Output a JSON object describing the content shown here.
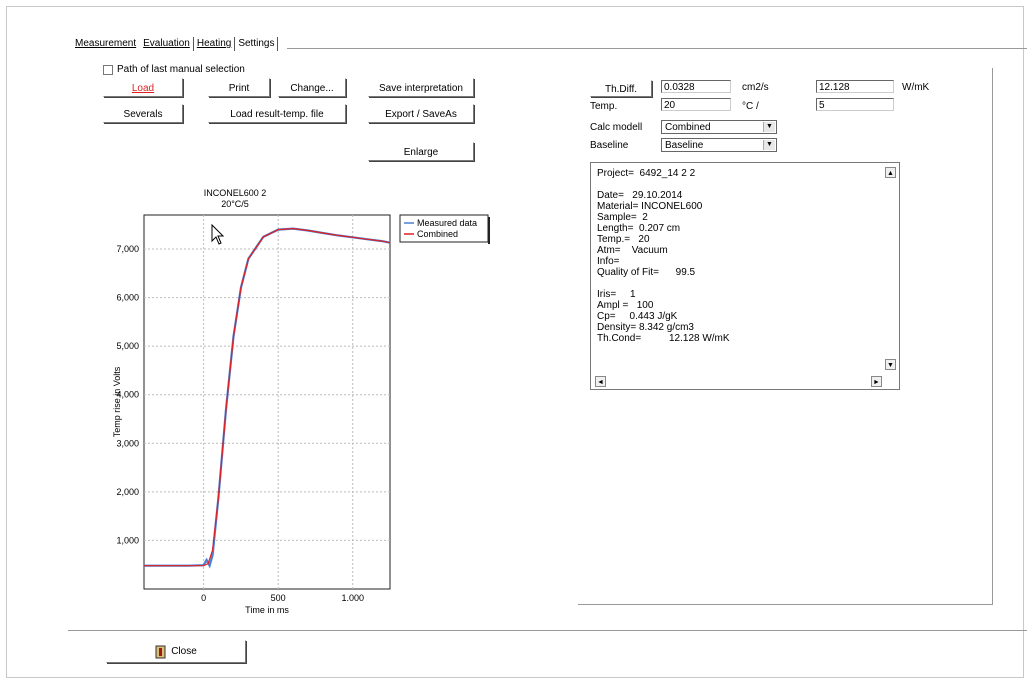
{
  "tabs": [
    "Measurement",
    "Evaluation",
    "Heating",
    "Settings"
  ],
  "checkbox": {
    "label": "Path of last manual selection",
    "checked": false
  },
  "buttons": {
    "load": "Load",
    "print": "Print",
    "change": "Change...",
    "save_interpretation": "Save interpretation",
    "severals": "Severals",
    "load_result": "Load result-temp. file",
    "export": "Export / SaveAs",
    "enlarge": "Enlarge",
    "th_diff": "Th.Diff.",
    "close": "Close"
  },
  "params": {
    "th_diff_value": "0.0328",
    "th_diff_unit": "cm2/s",
    "th_cond_value": "12.128",
    "th_cond_unit": "W/mK",
    "temp_label": "Temp.",
    "temp_value": "20",
    "temp_unit": "°C /",
    "temp_extra": "5",
    "calc_model_label": "Calc modell",
    "calc_model_value": "Combined",
    "baseline_label": "Baseline",
    "baseline_value": "Baseline"
  },
  "memo_lines": [
    "Project=  6492_14 2 2",
    "",
    "Date=   29.10.2014",
    "Material= INCONEL600",
    "Sample=  2",
    "Length=  0.207 cm",
    "Temp.=   20",
    "Atm=    Vacuum",
    "Info=",
    "Quality of Fit=      99.5",
    "",
    "Iris=     1",
    "Ampl =   100",
    "Cp=     0.443 J/gK",
    "Density= 8.342 g/cm3",
    "Th.Cond=          12.128 W/mK"
  ],
  "chart_data": {
    "type": "line",
    "title": "INCONEL600 2",
    "subtitle": "20°C/5",
    "xlabel": "Time in ms",
    "ylabel": "Temp rise in Volts",
    "xlim": [
      -400,
      1250
    ],
    "ylim": [
      0,
      7700
    ],
    "xticks": [
      "0",
      "500",
      "1.000"
    ],
    "xtick_values": [
      0,
      500,
      1000
    ],
    "yticks": [
      "1,000",
      "2,000",
      "3,000",
      "4,000",
      "5,000",
      "6,000",
      "7,000"
    ],
    "ytick_values": [
      1000,
      2000,
      3000,
      4000,
      5000,
      6000,
      7000
    ],
    "grid": true,
    "legend_position": "top-right",
    "series": [
      {
        "name": "Measured data",
        "color": "#4a7fd6",
        "x": [
          -400,
          -100,
          0,
          20,
          40,
          60,
          100,
          150,
          200,
          250,
          300,
          400,
          500,
          600,
          700,
          800,
          900,
          1000,
          1100,
          1200,
          1250
        ],
        "y": [
          480,
          480,
          490,
          600,
          480,
          700,
          1900,
          3700,
          5200,
          6200,
          6800,
          7250,
          7400,
          7420,
          7380,
          7330,
          7280,
          7240,
          7200,
          7160,
          7130
        ]
      },
      {
        "name": "Combined",
        "color": "#e02020",
        "x": [
          -400,
          -100,
          0,
          30,
          60,
          100,
          150,
          200,
          250,
          300,
          400,
          500,
          600,
          700,
          800,
          900,
          1000,
          1100,
          1200,
          1250
        ],
        "y": [
          480,
          480,
          480,
          520,
          800,
          1900,
          3700,
          5200,
          6200,
          6800,
          7250,
          7400,
          7420,
          7380,
          7330,
          7280,
          7240,
          7200,
          7160,
          7130
        ]
      }
    ]
  }
}
